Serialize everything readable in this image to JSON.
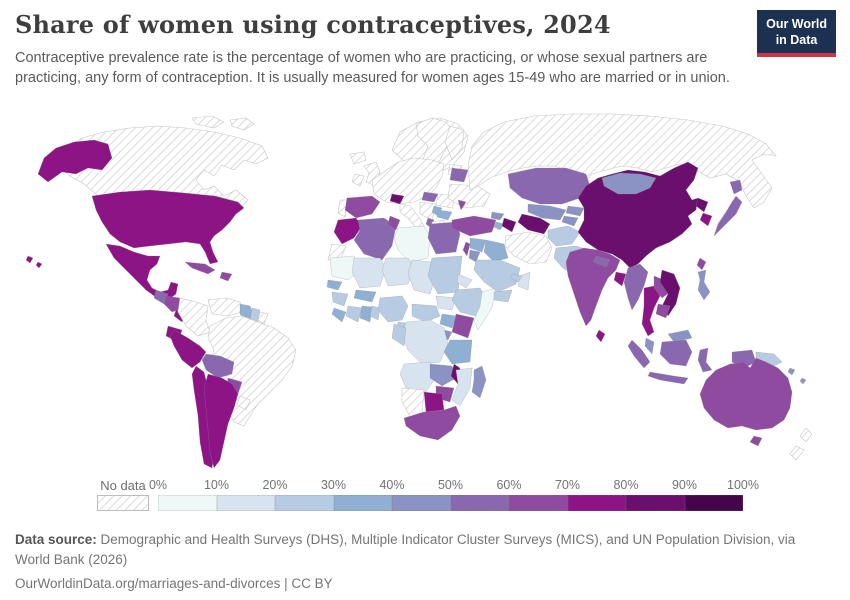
{
  "header": {
    "title": "Share of women using contraceptives, 2024",
    "logo_line1": "Our World",
    "logo_line2": "in Data",
    "logo_bg_color": "#1c3152",
    "logo_accent_color": "#cf3541"
  },
  "subtitle": "Contraceptive prevalence rate is the percentage of women who are practicing, or whose sexual partners are practicing, any form of contraception. It is usually measured for women ages 15-49 who are married or in union.",
  "footer": {
    "source_label": "Data source:",
    "source_text": " Demographic and Health Surveys (DHS), Multiple Indicator Cluster Surveys (MICS), and UN Population Division, via World Bank (2026)",
    "link_text": "OurWorldinData.org/marriages-and-divorces | CC BY"
  },
  "chart_data": {
    "type": "choropleth-map",
    "title": "Share of women using contraceptives",
    "year": "2024",
    "unit": "%",
    "legend": {
      "no_data_label": "No data",
      "ticks": [
        "0%",
        "10%",
        "20%",
        "30%",
        "40%",
        "50%",
        "60%",
        "70%",
        "80%",
        "90%",
        "100%"
      ],
      "bins": [
        "0-10%",
        "10-20%",
        "20-30%",
        "30-40%",
        "40-50%",
        "50-60%",
        "60-70%",
        "70-80%",
        "80-90%",
        "90-100%"
      ],
      "colors": [
        "#edf8f7",
        "#d7e4ef",
        "#b7cce2",
        "#8fafd3",
        "#8a93c4",
        "#8a68b0",
        "#8e4ba0",
        "#8c1485",
        "#6a0f6d",
        "#45054a"
      ],
      "no_data_pattern": "diagonal-hatch #d2d2d2 on #ffffff"
    },
    "countries": [
      {
        "id": "canada",
        "name": "Canada",
        "level": "no-data"
      },
      {
        "id": "canada-arctic-1",
        "name": "Canadian Arctic Islands",
        "level": "no-data"
      },
      {
        "id": "canada-arctic-2",
        "name": "Canadian Arctic Islands",
        "level": "no-data"
      },
      {
        "id": "greenland",
        "name": "Greenland",
        "level": "no-data"
      },
      {
        "id": "iceland",
        "name": "Iceland",
        "level": "no-data"
      },
      {
        "id": "alaska",
        "name": "United States (Alaska)",
        "level": 7
      },
      {
        "id": "usa",
        "name": "United States",
        "level": 7
      },
      {
        "id": "hawaii",
        "name": "United States (Hawaii)",
        "level": 7
      },
      {
        "id": "mexico",
        "name": "Mexico",
        "level": 7
      },
      {
        "id": "guatemala",
        "name": "Guatemala",
        "level": 5
      },
      {
        "id": "honduras-nicaragua",
        "name": "Honduras & Nicaragua",
        "level": 6
      },
      {
        "id": "costa-rica",
        "name": "Costa Rica",
        "level": 7
      },
      {
        "id": "panama",
        "name": "Panama",
        "level": 6
      },
      {
        "id": "cuba",
        "name": "Cuba",
        "level": 6
      },
      {
        "id": "hispaniola",
        "name": "Haiti & Dominican Republic",
        "level": 6
      },
      {
        "id": "colombia",
        "name": "Colombia",
        "level": "no-data"
      },
      {
        "id": "venezuela",
        "name": "Venezuela",
        "level": "no-data"
      },
      {
        "id": "guyana",
        "name": "Guyana",
        "level": 3
      },
      {
        "id": "suriname",
        "name": "Suriname",
        "level": 2
      },
      {
        "id": "french-guiana",
        "name": "French Guiana",
        "level": "no-data"
      },
      {
        "id": "brazil",
        "name": "Brazil",
        "level": "no-data"
      },
      {
        "id": "ecuador",
        "name": "Ecuador",
        "level": 7
      },
      {
        "id": "peru",
        "name": "Peru",
        "level": 7
      },
      {
        "id": "bolivia",
        "name": "Bolivia",
        "level": 5
      },
      {
        "id": "paraguay",
        "name": "Paraguay",
        "level": 6
      },
      {
        "id": "chile",
        "name": "Chile",
        "level": 7
      },
      {
        "id": "argentina",
        "name": "Argentina",
        "level": 7
      },
      {
        "id": "uruguay",
        "name": "Uruguay",
        "level": "no-data"
      },
      {
        "id": "scandinavia",
        "name": "Norway & Sweden",
        "level": "no-data"
      },
      {
        "id": "finland",
        "name": "Finland",
        "level": "no-data"
      },
      {
        "id": "baltics",
        "name": "Baltic states",
        "level": "no-data"
      },
      {
        "id": "uk",
        "name": "United Kingdom",
        "level": "no-data"
      },
      {
        "id": "ireland",
        "name": "Ireland",
        "level": "no-data"
      },
      {
        "id": "central-europe",
        "name": "Western & Central Europe",
        "level": "no-data"
      },
      {
        "id": "switzerland",
        "name": "Switzerland",
        "level": 8
      },
      {
        "id": "portugal",
        "name": "Portugal",
        "level": "no-data"
      },
      {
        "id": "spain",
        "name": "Spain",
        "level": 6
      },
      {
        "id": "italy",
        "name": "Italy",
        "level": "no-data"
      },
      {
        "id": "balkans",
        "name": "Balkans",
        "level": "no-data"
      },
      {
        "id": "hungary",
        "name": "Hungary",
        "level": 5
      },
      {
        "id": "serbia",
        "name": "Serbia",
        "level": 3
      },
      {
        "id": "albania",
        "name": "Albania",
        "level": 5
      },
      {
        "id": "bulgaria",
        "name": "Bulgaria",
        "level": 3
      },
      {
        "id": "romania",
        "name": "Romania",
        "level": "no-data"
      },
      {
        "id": "greece",
        "name": "Greece",
        "level": "no-data"
      },
      {
        "id": "belarus",
        "name": "Belarus",
        "level": 5
      },
      {
        "id": "ukraine",
        "name": "Ukraine",
        "level": "no-data"
      },
      {
        "id": "moldova",
        "name": "Moldova",
        "level": 6
      },
      {
        "id": "russia",
        "name": "Russia",
        "level": "no-data"
      },
      {
        "id": "turkey",
        "name": "Turkey",
        "level": 6
      },
      {
        "id": "syria",
        "name": "Syria",
        "level": 3
      },
      {
        "id": "israel-lebanon",
        "name": "Israel & Lebanon",
        "level": 6
      },
      {
        "id": "jordan",
        "name": "Jordan",
        "level": 4
      },
      {
        "id": "iraq",
        "name": "Iraq",
        "level": 3
      },
      {
        "id": "saudi-arabia",
        "name": "Saudi Arabia",
        "level": 2
      },
      {
        "id": "yemen",
        "name": "Yemen",
        "level": 2
      },
      {
        "id": "oman",
        "name": "Oman",
        "level": 1
      },
      {
        "id": "uae-qatar",
        "name": "UAE & Qatar",
        "level": 2
      },
      {
        "id": "iran",
        "name": "Iran",
        "level": "no-data"
      },
      {
        "id": "georgia",
        "name": "Georgia",
        "level": 4
      },
      {
        "id": "armenia",
        "name": "Armenia",
        "level": 3
      },
      {
        "id": "azerbaijan",
        "name": "Azerbaijan",
        "level": 8
      },
      {
        "id": "kazakhstan",
        "name": "Kazakhstan",
        "level": 5
      },
      {
        "id": "uzbekistan",
        "name": "Uzbekistan",
        "level": 4
      },
      {
        "id": "turkmenistan",
        "name": "Turkmenistan",
        "level": 8
      },
      {
        "id": "kyrgyzstan",
        "name": "Kyrgyzstan",
        "level": 4
      },
      {
        "id": "tajikistan",
        "name": "Tajikistan",
        "level": 4
      },
      {
        "id": "afghanistan",
        "name": "Afghanistan",
        "level": 2
      },
      {
        "id": "pakistan",
        "name": "Pakistan",
        "level": 2
      },
      {
        "id": "india",
        "name": "India",
        "level": 6
      },
      {
        "id": "nepal",
        "name": "Nepal",
        "level": 5
      },
      {
        "id": "bangladesh",
        "name": "Bangladesh",
        "level": 7
      },
      {
        "id": "sri-lanka",
        "name": "Sri Lanka",
        "level": 7
      },
      {
        "id": "china",
        "name": "China",
        "level": 8
      },
      {
        "id": "mongolia",
        "name": "Mongolia",
        "level": 4
      },
      {
        "id": "north-korea",
        "name": "North Korea",
        "level": 8
      },
      {
        "id": "south-korea",
        "name": "South Korea",
        "level": 7
      },
      {
        "id": "japan-hokkaido",
        "name": "Japan (Hokkaido)",
        "level": 5
      },
      {
        "id": "japan",
        "name": "Japan",
        "level": 5
      },
      {
        "id": "taiwan",
        "name": "Taiwan",
        "level": 6
      },
      {
        "id": "myanmar",
        "name": "Myanmar",
        "level": 5
      },
      {
        "id": "thailand",
        "name": "Thailand",
        "level": 7
      },
      {
        "id": "laos",
        "name": "Laos",
        "level": 6
      },
      {
        "id": "vietnam",
        "name": "Vietnam",
        "level": 8
      },
      {
        "id": "cambodia",
        "name": "Cambodia",
        "level": 6
      },
      {
        "id": "malaysia",
        "name": "Malaysia",
        "level": 4
      },
      {
        "id": "malaysia-borneo",
        "name": "Malaysia (Borneo)",
        "level": 4
      },
      {
        "id": "philippines",
        "name": "Philippines",
        "level": 4
      },
      {
        "id": "indonesia-sumatra",
        "name": "Indonesia (Sumatra)",
        "level": 5
      },
      {
        "id": "indonesia-borneo",
        "name": "Indonesia (Kalimantan)",
        "level": 5
      },
      {
        "id": "indonesia-java",
        "name": "Indonesia (Java)",
        "level": 5
      },
      {
        "id": "indonesia-sulawesi",
        "name": "Indonesia (Sulawesi)",
        "level": 5
      },
      {
        "id": "indonesia-papua",
        "name": "Indonesia (Papua)",
        "level": 5
      },
      {
        "id": "png",
        "name": "Papua New Guinea",
        "level": 2
      },
      {
        "id": "solomon",
        "name": "Solomon Islands",
        "level": 4
      },
      {
        "id": "australia",
        "name": "Australia",
        "level": 6
      },
      {
        "id": "tasmania",
        "name": "Australia (Tasmania)",
        "level": 6
      },
      {
        "id": "new-zealand-north",
        "name": "New Zealand (North Island)",
        "level": "no-data"
      },
      {
        "id": "new-zealand-south",
        "name": "New Zealand (South Island)",
        "level": "no-data"
      },
      {
        "id": "morocco",
        "name": "Morocco",
        "level": 7
      },
      {
        "id": "western-sahara",
        "name": "Western Sahara",
        "level": "no-data"
      },
      {
        "id": "algeria",
        "name": "Algeria",
        "level": 5
      },
      {
        "id": "tunisia",
        "name": "Tunisia",
        "level": 6
      },
      {
        "id": "libya",
        "name": "Libya",
        "level": 0
      },
      {
        "id": "egypt",
        "name": "Egypt",
        "level": 5
      },
      {
        "id": "mauritania",
        "name": "Mauritania",
        "level": 0
      },
      {
        "id": "mali",
        "name": "Mali",
        "level": 1
      },
      {
        "id": "niger",
        "name": "Niger",
        "level": 1
      },
      {
        "id": "chad",
        "name": "Chad",
        "level": 1
      },
      {
        "id": "sudan",
        "name": "Sudan",
        "level": 2
      },
      {
        "id": "eritrea",
        "name": "Eritrea",
        "level": 1
      },
      {
        "id": "senegal",
        "name": "Senegal",
        "level": 3
      },
      {
        "id": "guinea",
        "name": "Guinea",
        "level": 2
      },
      {
        "id": "sierra-leone-liberia",
        "name": "Sierra Leone & Liberia",
        "level": 3
      },
      {
        "id": "cote-divoire",
        "name": "Cote d'Ivoire",
        "level": 2
      },
      {
        "id": "ghana",
        "name": "Ghana",
        "level": 3
      },
      {
        "id": "burkina-faso",
        "name": "Burkina Faso",
        "level": 3
      },
      {
        "id": "togo-benin",
        "name": "Togo & Benin",
        "level": 2
      },
      {
        "id": "nigeria",
        "name": "Nigeria",
        "level": 2
      },
      {
        "id": "cameroon",
        "name": "Cameroon",
        "level": 2
      },
      {
        "id": "car",
        "name": "Central African Republic",
        "level": 2
      },
      {
        "id": "south-sudan",
        "name": "South Sudan",
        "level": 1
      },
      {
        "id": "ethiopia",
        "name": "Ethiopia",
        "level": 2
      },
      {
        "id": "somalia",
        "name": "Somalia",
        "level": 0
      },
      {
        "id": "kenya",
        "name": "Kenya",
        "level": 6
      },
      {
        "id": "uganda",
        "name": "Uganda",
        "level": 3
      },
      {
        "id": "rwanda-burundi",
        "name": "Rwanda & Burundi",
        "level": 4
      },
      {
        "id": "drc",
        "name": "Democratic Republic of Congo",
        "level": 1
      },
      {
        "id": "gabon-congo",
        "name": "Gabon & Congo",
        "level": 2
      },
      {
        "id": "tanzania",
        "name": "Tanzania",
        "level": 3
      },
      {
        "id": "angola",
        "name": "Angola",
        "level": 1
      },
      {
        "id": "zambia",
        "name": "Zambia",
        "level": 4
      },
      {
        "id": "malawi",
        "name": "Malawi",
        "level": 8
      },
      {
        "id": "mozambique",
        "name": "Mozambique",
        "level": 1
      },
      {
        "id": "zimbabwe",
        "name": "Zimbabwe",
        "level": 6
      },
      {
        "id": "botswana",
        "name": "Botswana",
        "level": 7
      },
      {
        "id": "namibia",
        "name": "Namibia",
        "level": "no-data"
      },
      {
        "id": "south-africa",
        "name": "South Africa",
        "level": 6
      },
      {
        "id": "madagascar",
        "name": "Madagascar",
        "level": 4
      }
    ]
  }
}
